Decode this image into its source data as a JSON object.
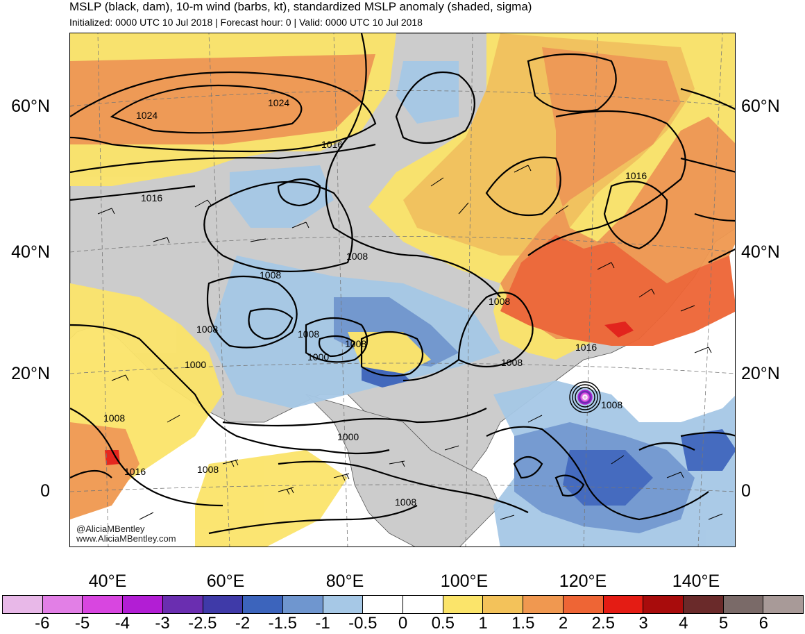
{
  "header": {
    "title": "MSLP (black, dam), 10-m wind (barbs, kt), standardized MSLP anomaly (shaded, sigma)",
    "subtitle": "Initialized: 0000 UTC 10 Jul 2018 | Forecast hour: 0 | Valid: 0000 UTC 10 Jul 2018"
  },
  "map": {
    "lat_labels": [
      "60°N",
      "40°N",
      "20°N",
      "0"
    ],
    "lon_labels": [
      "40°E",
      "60°E",
      "80°E",
      "100°E",
      "120°E",
      "140°E"
    ],
    "contour_labels": [
      "1024",
      "1024",
      "1016",
      "1016",
      "1016",
      "1016",
      "1008",
      "1008",
      "1008",
      "1008",
      "1008",
      "1008",
      "1008",
      "1008",
      "1008",
      "1000",
      "1000",
      "1000",
      "1016",
      "1008",
      "1008"
    ],
    "credit_line1": "@AliciaMBentley",
    "credit_line2": "www.AliciaMBentley.com",
    "land_color": "#cccccc",
    "contour_color": "#000000"
  },
  "colorbar": {
    "labels": [
      "-6",
      "-5",
      "-4",
      "-3",
      "-2.5",
      "-2",
      "-1.5",
      "-1",
      "-0.5",
      "0",
      "0.5",
      "1",
      "1.5",
      "2",
      "2.5",
      "3",
      "4",
      "5",
      "6"
    ],
    "colors": [
      "#e8b8e8",
      "#e27fe6",
      "#d846e0",
      "#b21ed4",
      "#6a2eb0",
      "#3f3aa8",
      "#3c64bc",
      "#6f96cf",
      "#a6c8e6",
      "#ffffff",
      "#ffffff",
      "#fbe46a",
      "#f3c25a",
      "#f09850",
      "#ee6535",
      "#e41c14",
      "#a80c0c",
      "#6a2a2a",
      "#7a6a68",
      "#a89a98"
    ]
  }
}
